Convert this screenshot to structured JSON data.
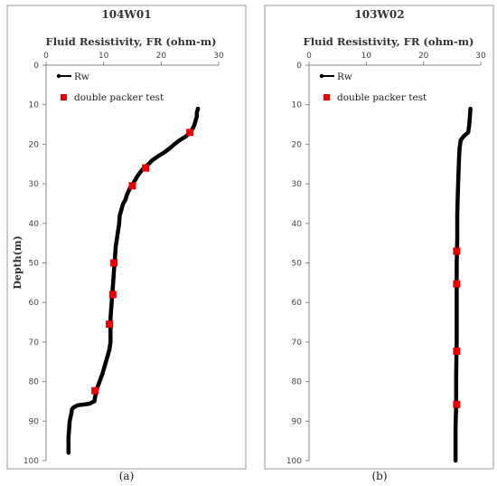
{
  "chart_data": [
    {
      "type": "line",
      "title": "104W01",
      "xlabel": "Fluid Resistivity, FR (ohm-m)",
      "ylabel": "Depth(m)",
      "caption": "(a)",
      "xlim": [
        0,
        30
      ],
      "ylim": [
        0,
        100
      ],
      "y_inverted": true,
      "xticks": [
        0,
        10,
        20,
        30
      ],
      "yticks": [
        0,
        10,
        20,
        30,
        40,
        50,
        60,
        70,
        80,
        90,
        100
      ],
      "grid": false,
      "legend_position": "top-left",
      "series": [
        {
          "name": "Rw",
          "kind": "line",
          "color": "#000000",
          "points": [
            [
              26.4,
              11
            ],
            [
              26.2,
              12
            ],
            [
              26.2,
              13
            ],
            [
              26.0,
              14
            ],
            [
              25.8,
              15
            ],
            [
              25.5,
              16
            ],
            [
              25.0,
              17
            ],
            [
              24.3,
              18
            ],
            [
              23.2,
              19
            ],
            [
              22.3,
              20
            ],
            [
              21.5,
              21
            ],
            [
              20.6,
              22
            ],
            [
              19.5,
              23
            ],
            [
              18.5,
              24
            ],
            [
              17.8,
              25
            ],
            [
              17.0,
              26
            ],
            [
              16.4,
              27
            ],
            [
              15.9,
              28
            ],
            [
              15.5,
              29
            ],
            [
              15.1,
              30
            ],
            [
              14.6,
              31
            ],
            [
              14.3,
              32
            ],
            [
              14.0,
              33
            ],
            [
              13.8,
              34
            ],
            [
              13.4,
              35
            ],
            [
              13.2,
              36
            ],
            [
              13.0,
              37
            ],
            [
              12.8,
              38
            ],
            [
              12.7,
              40
            ],
            [
              12.5,
              42
            ],
            [
              12.3,
              44
            ],
            [
              12.1,
              46
            ],
            [
              12.0,
              48
            ],
            [
              11.9,
              50
            ],
            [
              11.8,
              52
            ],
            [
              11.7,
              54
            ],
            [
              11.6,
              56
            ],
            [
              11.5,
              58
            ],
            [
              11.4,
              60
            ],
            [
              11.3,
              62
            ],
            [
              11.2,
              64
            ],
            [
              11.2,
              66
            ],
            [
              11.2,
              68
            ],
            [
              11.2,
              70
            ],
            [
              11.0,
              72
            ],
            [
              10.6,
              74
            ],
            [
              10.2,
              76
            ],
            [
              9.8,
              78
            ],
            [
              9.3,
              80
            ],
            [
              8.8,
              82
            ],
            [
              8.5,
              84
            ],
            [
              8.4,
              85
            ],
            [
              7.5,
              85.6
            ],
            [
              5.5,
              86
            ],
            [
              4.8,
              86.5
            ],
            [
              4.5,
              87
            ],
            [
              4.4,
              88
            ],
            [
              4.1,
              90
            ],
            [
              4.0,
              92
            ],
            [
              3.9,
              94
            ],
            [
              3.9,
              96
            ],
            [
              3.9,
              98
            ]
          ]
        },
        {
          "name": "double packer test",
          "kind": "marker",
          "color": "#e60000",
          "points": [
            [
              25.0,
              17
            ],
            [
              17.3,
              26
            ],
            [
              15.0,
              30.5
            ],
            [
              11.8,
              50
            ],
            [
              11.6,
              58
            ],
            [
              11.0,
              65.5
            ],
            [
              8.5,
              82.3
            ]
          ]
        }
      ]
    },
    {
      "type": "line",
      "title": "103W02",
      "xlabel": "Fluid Resistivity, FR (ohm-m)",
      "ylabel": "",
      "caption": "(b)",
      "xlim": [
        0,
        30
      ],
      "ylim": [
        0,
        100
      ],
      "y_inverted": true,
      "xticks": [
        0,
        10,
        20,
        30
      ],
      "yticks": [
        0,
        10,
        20,
        30,
        40,
        50,
        60,
        70,
        80,
        90,
        100
      ],
      "grid": false,
      "legend_position": "top-left",
      "series": [
        {
          "name": "Rw",
          "kind": "line",
          "color": "#000000",
          "points": [
            [
              28.2,
              11
            ],
            [
              28.1,
              13
            ],
            [
              28.0,
              15
            ],
            [
              27.8,
              17
            ],
            [
              27.0,
              18
            ],
            [
              26.5,
              19
            ],
            [
              26.3,
              21
            ],
            [
              26.2,
              24
            ],
            [
              26.1,
              28
            ],
            [
              26.0,
              32
            ],
            [
              25.9,
              38
            ],
            [
              25.9,
              44
            ],
            [
              25.8,
              50
            ],
            [
              25.8,
              56
            ],
            [
              25.8,
              62
            ],
            [
              25.8,
              70
            ],
            [
              25.7,
              78
            ],
            [
              25.7,
              86
            ],
            [
              25.6,
              92
            ],
            [
              25.6,
              100
            ]
          ]
        },
        {
          "name": "double packer test",
          "kind": "marker",
          "color": "#e60000",
          "points": [
            [
              25.8,
              47
            ],
            [
              25.8,
              55.3
            ],
            [
              25.8,
              72.3
            ],
            [
              25.8,
              85.8
            ]
          ]
        }
      ]
    }
  ]
}
